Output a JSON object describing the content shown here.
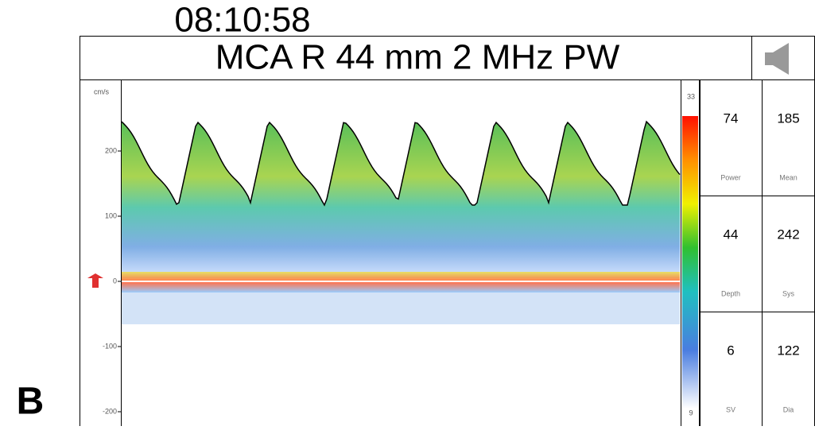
{
  "time": "08:10:58",
  "header": {
    "title": "MCA R 44 mm 2 MHz PW"
  },
  "axis": {
    "unit": "cm/s",
    "ticks": [
      "200",
      "100",
      "0",
      "-100",
      "-200"
    ]
  },
  "colorbar": {
    "top": "33",
    "bottom": "9"
  },
  "readouts": [
    [
      {
        "value": "74",
        "label": "Power"
      },
      {
        "value": "185",
        "label": "Mean"
      }
    ],
    [
      {
        "value": "44",
        "label": "Depth"
      },
      {
        "value": "242",
        "label": "Sys"
      }
    ],
    [
      {
        "value": "6",
        "label": "SV"
      },
      {
        "value": "122",
        "label": "Dia"
      }
    ]
  ],
  "panel_label": "B"
}
